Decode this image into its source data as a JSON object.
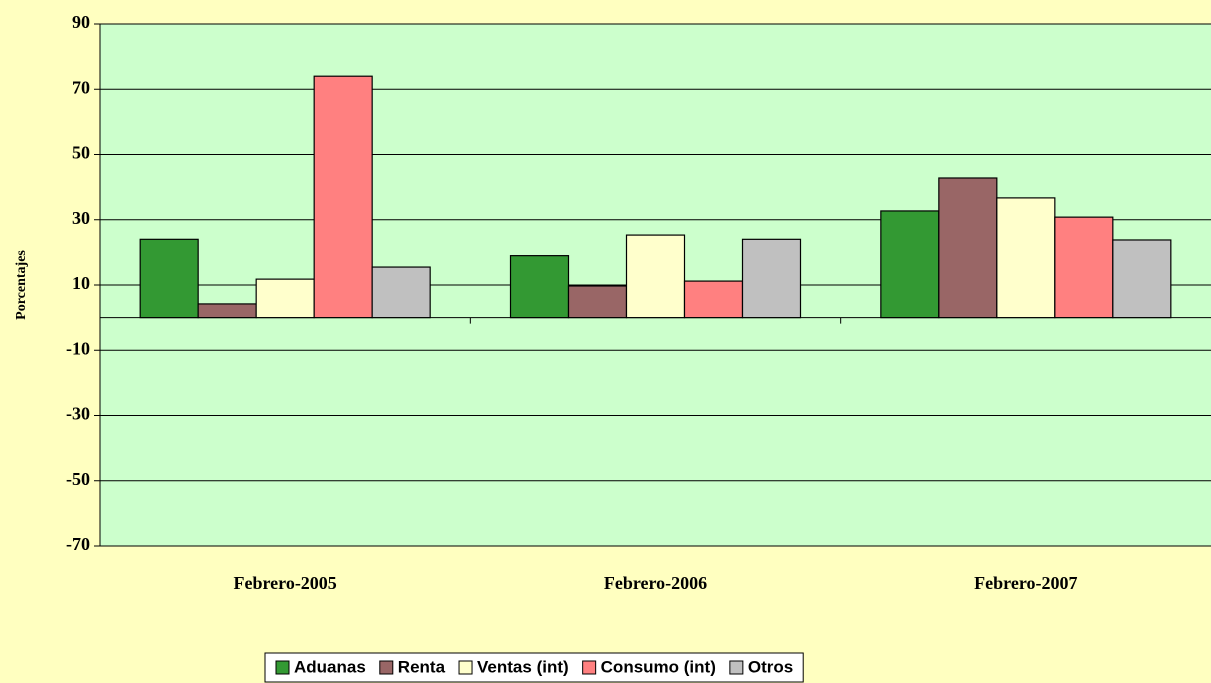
{
  "chart_data": {
    "type": "bar",
    "ylabel": "Porcentajes",
    "categories": [
      "Febrero-2005",
      "Febrero-2006",
      "Febrero-2007"
    ],
    "series": [
      {
        "name": "Aduanas",
        "color": "#339933",
        "values": [
          24,
          19,
          32.7
        ]
      },
      {
        "name": "Renta",
        "color": "#996666",
        "values": [
          4.2,
          9.7,
          42.8
        ]
      },
      {
        "name": "Ventas (int)",
        "color": "#ffffcc",
        "values": [
          11.8,
          25.3,
          36.7
        ]
      },
      {
        "name": "Consumo (int)",
        "color": "#ff8080",
        "values": [
          74,
          11.2,
          30.8
        ]
      },
      {
        "name": "Otros",
        "color": "#c0c0c0",
        "values": [
          15.5,
          24,
          23.8
        ]
      }
    ],
    "ylim": [
      -70,
      90
    ],
    "yticks": [
      90,
      70,
      50,
      30,
      10,
      -10,
      -30,
      -50,
      -70
    ],
    "grid": true,
    "legend": "bottom"
  }
}
